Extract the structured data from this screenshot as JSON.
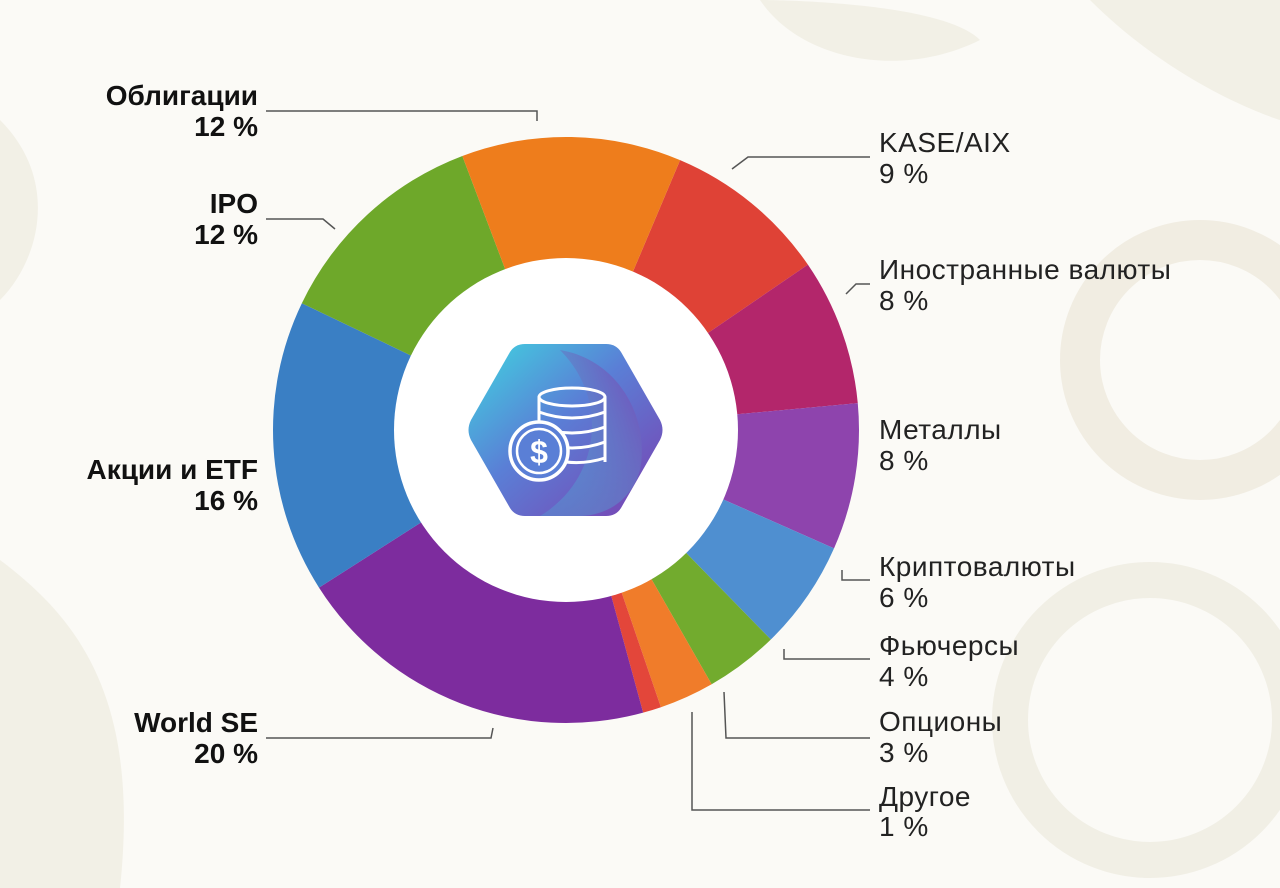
{
  "chart_data": {
    "type": "pie",
    "title": "",
    "slices": [
      {
        "label": "KASE/AIX",
        "value": 9,
        "display": "9 %",
        "color": "#df4236"
      },
      {
        "label": "Иностранные валюты",
        "value": 8,
        "display": "8 %",
        "color": "#b3266b"
      },
      {
        "label": "Металлы",
        "value": 8,
        "display": "8 %",
        "color": "#8e44ad"
      },
      {
        "label": "Криптовалюты",
        "value": 6,
        "display": "6 %",
        "color": "#4f8fd0"
      },
      {
        "label": "Фьючерсы",
        "value": 4,
        "display": "4 %",
        "color": "#72ab2e"
      },
      {
        "label": "Опционы",
        "value": 3,
        "display": "3 %",
        "color": "#f07c2a"
      },
      {
        "label": "Другое",
        "value": 1,
        "display": "1 %",
        "color": "#e3463a"
      },
      {
        "label": "World SE",
        "value": 20,
        "display": "20 %",
        "color": "#7d2c9e"
      },
      {
        "label": "Акции и ETF",
        "value": 16,
        "display": "16 %",
        "color": "#3a7fc4"
      },
      {
        "label": "IPO",
        "value": 12,
        "display": "12 %",
        "color": "#6ea82a"
      },
      {
        "label": "Облигации",
        "value": 12,
        "display": "12 %",
        "color": "#ee7d1c"
      }
    ]
  },
  "center_icon": {
    "name": "coins-dollar-icon",
    "symbol": "$"
  }
}
